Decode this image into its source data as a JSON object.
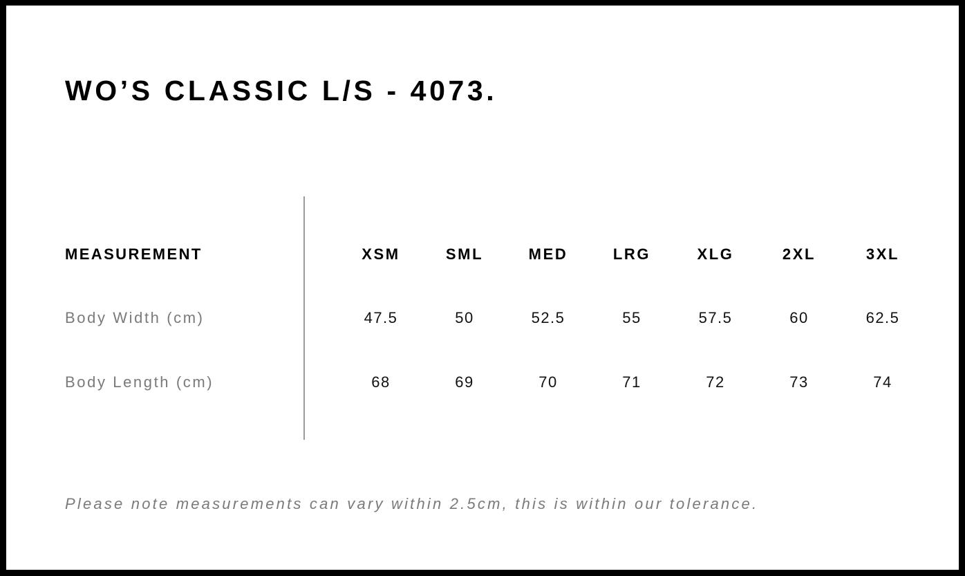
{
  "title": "WO’S CLASSIC L/S - 4073.",
  "table": {
    "header_label": "MEASUREMENT",
    "sizes": [
      "XSM",
      "SML",
      "MED",
      "LRG",
      "XLG",
      "2XL",
      "3XL"
    ],
    "rows": [
      {
        "label": "Body Width (cm)",
        "values": [
          "47.5",
          "50",
          "52.5",
          "55",
          "57.5",
          "60",
          "62.5"
        ]
      },
      {
        "label": "Body Length (cm)",
        "values": [
          "68",
          "69",
          "70",
          "71",
          "72",
          "73",
          "74"
        ]
      }
    ]
  },
  "note": "Please note measurements can vary within 2.5cm, this is within our tolerance."
}
